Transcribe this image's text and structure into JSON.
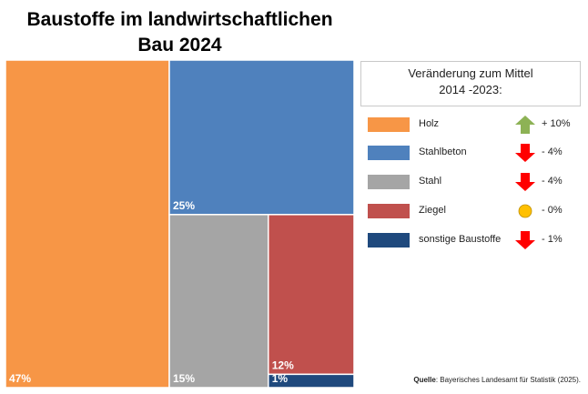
{
  "title_line1": "Baustoffe im landwirtschaftlichen",
  "title_line2": "Bau 2024",
  "legend": {
    "header_line1": "Veränderung zum Mittel",
    "header_line2": "2014 -2023:"
  },
  "source": {
    "label": "Quelle",
    "text": ": Bayerisches Landesamt für Statistik (2025)."
  },
  "chart_data": {
    "type": "treemap",
    "title": "Baustoffe im landwirtschaftlichen Bau 2024",
    "unit": "%",
    "items": [
      {
        "name": "Holz",
        "value": 47,
        "label": "47%",
        "color": "#F79646",
        "change": "+ 10%",
        "trend": "up",
        "trend_color": "#8DB255"
      },
      {
        "name": "Stahlbeton",
        "value": 25,
        "label": "25%",
        "color": "#4F81BD",
        "change": "- 4%",
        "trend": "down",
        "trend_color": "#FF0000"
      },
      {
        "name": "Stahl",
        "value": 15,
        "label": "15%",
        "color": "#A5A5A5",
        "change": "- 4%",
        "trend": "down",
        "trend_color": "#FF0000"
      },
      {
        "name": "Ziegel",
        "value": 12,
        "label": "12%",
        "color": "#C0504D",
        "change": "- 0%",
        "trend": "neutral",
        "trend_color": "#FFC000"
      },
      {
        "name": "sonstige Baustoffe",
        "value": 1,
        "label": "1%",
        "color": "#1F497D",
        "change": "- 1%",
        "trend": "down",
        "trend_color": "#FF0000"
      }
    ]
  }
}
